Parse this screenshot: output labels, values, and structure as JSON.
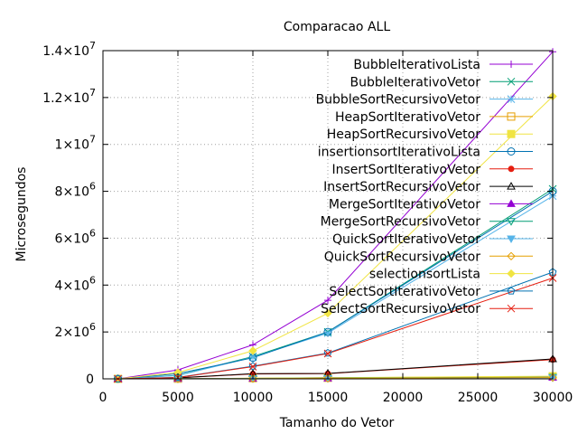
{
  "chart_data": {
    "type": "line",
    "title": "Comparacao ALL",
    "xlabel": "Tamanho do Vetor",
    "ylabel": "Microsegundos",
    "x": [
      1000,
      5000,
      10000,
      15000,
      30000
    ],
    "xlim": [
      0,
      30000
    ],
    "ylim": [
      0,
      14000000
    ],
    "xticks": [
      0,
      5000,
      10000,
      15000,
      20000,
      25000,
      30000
    ],
    "xtick_labels": [
      "0",
      "5000",
      "10000",
      "15000",
      "20000",
      "25000",
      "30000"
    ],
    "yticks": [
      0,
      2000000,
      4000000,
      6000000,
      8000000,
      10000000,
      12000000,
      14000000
    ],
    "ytick_labels": [
      {
        "base": "0",
        "exp": ""
      },
      {
        "base": "2×10",
        "exp": "6"
      },
      {
        "base": "4×10",
        "exp": "6"
      },
      {
        "base": "6×10",
        "exp": "6"
      },
      {
        "base": "8×10",
        "exp": "6"
      },
      {
        "base": "1×10",
        "exp": "7"
      },
      {
        "base": "1.2×10",
        "exp": "7"
      },
      {
        "base": "1.4×10",
        "exp": "7"
      }
    ],
    "grid": true,
    "legend_position": "top-right",
    "series": [
      {
        "name": "BubbleIterativoLista",
        "color": "#9400d3",
        "marker": "plus",
        "values": [
          0,
          380000,
          1450000,
          3350000,
          13950000
        ]
      },
      {
        "name": "BubbleIterativoVetor",
        "color": "#009e73",
        "marker": "x",
        "values": [
          0,
          150000,
          950000,
          2000000,
          8100000
        ]
      },
      {
        "name": "BubbleSortRecursivoVetor",
        "color": "#56b4e9",
        "marker": "star",
        "values": [
          0,
          140000,
          920000,
          1950000,
          7800000
        ]
      },
      {
        "name": "HeapSortIterativoVetor",
        "color": "#e69f00",
        "marker": "square-open",
        "values": [
          0,
          8000,
          25000,
          45000,
          100000
        ]
      },
      {
        "name": "HeapSortRecursivoVetor",
        "color": "#f0e442",
        "marker": "square",
        "values": [
          0,
          9000,
          28000,
          50000,
          110000
        ]
      },
      {
        "name": "insertionsortIterativoLista",
        "color": "#0072b2",
        "marker": "circle-open",
        "values": [
          0,
          220000,
          900000,
          2000000,
          8000000
        ]
      },
      {
        "name": "InsertSortIterativoVetor",
        "color": "#e51e10",
        "marker": "circle",
        "values": [
          0,
          40000,
          210000,
          220000,
          820000
        ]
      },
      {
        "name": "InsertSortRecursivoVetor",
        "color": "#000000",
        "marker": "triangle-open",
        "values": [
          0,
          42000,
          220000,
          230000,
          850000
        ]
      },
      {
        "name": "MergeSortIterativoVetor",
        "color": "#9400d3",
        "marker": "triangle",
        "values": [
          0,
          5000,
          15000,
          25000,
          60000
        ]
      },
      {
        "name": "MergeSortRecursivoVetor",
        "color": "#009e73",
        "marker": "triangle-down-open",
        "values": [
          0,
          6000,
          18000,
          30000,
          70000
        ]
      },
      {
        "name": "QuickSortIterativoVetor",
        "color": "#56b4e9",
        "marker": "triangle-down",
        "values": [
          0,
          4000,
          12000,
          20000,
          50000
        ]
      },
      {
        "name": "QuickSortRecursivoVetor",
        "color": "#e69f00",
        "marker": "diamond-open",
        "values": [
          0,
          4500,
          13000,
          22000,
          55000
        ]
      },
      {
        "name": "selectionsortLista",
        "color": "#f0e442",
        "marker": "diamond",
        "values": [
          0,
          270000,
          1200000,
          2800000,
          12050000
        ]
      },
      {
        "name": "SelectSortIterativoVetor",
        "color": "#0072b2",
        "marker": "pentagon-open",
        "values": [
          0,
          60000,
          540000,
          1100000,
          4550000
        ]
      },
      {
        "name": "SelectSortRecursivoVetor",
        "color": "#e51e10",
        "marker": "x",
        "values": [
          0,
          55000,
          520000,
          1080000,
          4300000
        ]
      }
    ]
  }
}
